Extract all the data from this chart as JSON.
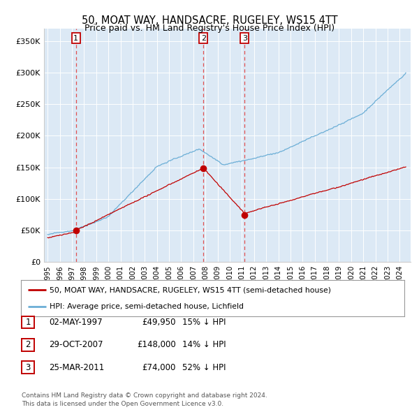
{
  "title": "50, MOAT WAY, HANDSACRE, RUGELEY, WS15 4TT",
  "subtitle": "Price paid vs. HM Land Registry's House Price Index (HPI)",
  "ylim": [
    0,
    370000
  ],
  "yticks": [
    0,
    50000,
    100000,
    150000,
    200000,
    250000,
    300000,
    350000
  ],
  "ytick_labels": [
    "£0",
    "£50K",
    "£100K",
    "£150K",
    "£200K",
    "£250K",
    "£300K",
    "£350K"
  ],
  "xlim_start": 1994.7,
  "xlim_end": 2024.9,
  "sale_dates": [
    1997.33,
    2007.83,
    2011.23
  ],
  "sale_prices": [
    49950,
    148000,
    74000
  ],
  "sale_labels": [
    "1",
    "2",
    "3"
  ],
  "hpi_color": "#6baed6",
  "sale_color": "#c00000",
  "vline_color": "#e05050",
  "legend_label_sale": "50, MOAT WAY, HANDSACRE, RUGELEY, WS15 4TT (semi-detached house)",
  "legend_label_hpi": "HPI: Average price, semi-detached house, Lichfield",
  "table_data": [
    [
      "1",
      "02-MAY-1997",
      "£49,950",
      "15% ↓ HPI"
    ],
    [
      "2",
      "29-OCT-2007",
      "£148,000",
      "14% ↓ HPI"
    ],
    [
      "3",
      "25-MAR-2011",
      "£74,000",
      "52% ↓ HPI"
    ]
  ],
  "footnote": "Contains HM Land Registry data © Crown copyright and database right 2024.\nThis data is licensed under the Open Government Licence v3.0.",
  "plot_bg_color": "#dce9f5"
}
